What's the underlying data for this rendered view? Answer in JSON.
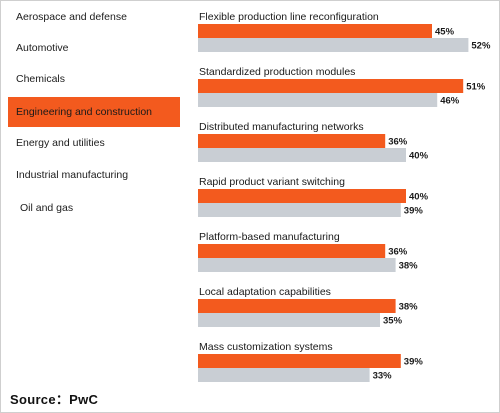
{
  "colors": {
    "accent": "#f35a1e",
    "secondary_bar": "#c9ced4",
    "text": "#1a1a1a"
  },
  "sidebar": {
    "items": [
      {
        "label": "Aerospace and defense",
        "active": false
      },
      {
        "label": "Automotive",
        "active": false
      },
      {
        "label": "Chemicals",
        "active": false
      },
      {
        "label": "Engineering and construction",
        "active": true
      },
      {
        "label": "Energy and utilities",
        "active": false
      },
      {
        "label": "Industrial manufacturing",
        "active": false
      },
      {
        "label": "Oil and gas",
        "active": false
      }
    ]
  },
  "source": "Source：PwC",
  "chart_data": {
    "type": "bar",
    "orientation": "horizontal",
    "categories": [
      "Flexible production line reconfiguration",
      "Standardized production modules",
      "Distributed manufacturing networks",
      "Rapid product variant switching",
      "Platform-based manufacturing",
      "Local adaptation capabilities",
      "Mass customization systems"
    ],
    "series": [
      {
        "color": "#f35a1e",
        "values": [
          45,
          51,
          36,
          40,
          36,
          38,
          39
        ]
      },
      {
        "color": "#c9ced4",
        "values": [
          52,
          46,
          40,
          39,
          38,
          35,
          33
        ]
      }
    ],
    "value_suffix": "%",
    "title": "",
    "xlabel": "",
    "ylabel": "",
    "xlim": [
      0,
      55
    ],
    "grid": false,
    "legend": "none"
  }
}
